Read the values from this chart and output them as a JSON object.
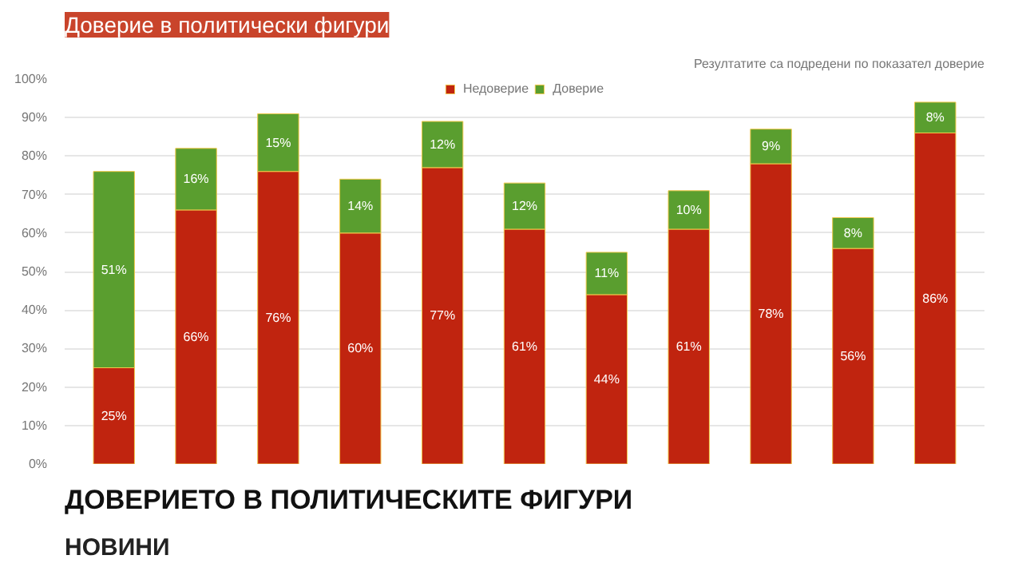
{
  "chart_data": {
    "type": "bar",
    "title": "Доверие в политически фигури",
    "stacked": true,
    "categories": [
      null,
      null,
      null,
      null,
      null,
      null,
      null,
      null,
      null,
      null,
      null
    ],
    "series": [
      {
        "name": "Недоверие",
        "color": "#c0240f",
        "values": [
          25,
          66,
          76,
          60,
          77,
          61,
          44,
          61,
          78,
          56,
          86
        ],
        "value_labels": [
          "25%",
          "66%",
          "76%",
          "60%",
          "77%",
          "61%",
          "44%",
          "61%",
          "78%",
          "56%",
          "86%"
        ]
      },
      {
        "name": "Доверие",
        "color": "#5a9e2f",
        "values": [
          51,
          16,
          15,
          14,
          12,
          12,
          11,
          10,
          9,
          8,
          8
        ],
        "value_labels": [
          "51%",
          "16%",
          "15%",
          "14%",
          "12%",
          "12%",
          "11%",
          "10%",
          "9%",
          "8%",
          "8%"
        ]
      }
    ],
    "ylim": [
      0,
      100
    ],
    "yticks": [
      {
        "value": 0,
        "label": "0%"
      },
      {
        "value": 10,
        "label": "10%"
      },
      {
        "value": 20,
        "label": "20%"
      },
      {
        "value": 30,
        "label": "30%"
      },
      {
        "value": 40,
        "label": "40%"
      },
      {
        "value": 50,
        "label": "50%"
      },
      {
        "value": 60,
        "label": "60%"
      },
      {
        "value": 70,
        "label": "70%"
      },
      {
        "value": 80,
        "label": "80%"
      },
      {
        "value": 90,
        "label": "90%"
      },
      {
        "value": 100,
        "label": "100%"
      }
    ],
    "grid": "y",
    "legend": "top",
    "tick_labels": "y",
    "annotations": [
      "Резултатите са подредени по показател доверие",
      "НОВИНИ",
      "ДОВЕРИЕТО В ПОЛИТИЧЕСКИТЕ ФИГУРИ"
    ]
  }
}
